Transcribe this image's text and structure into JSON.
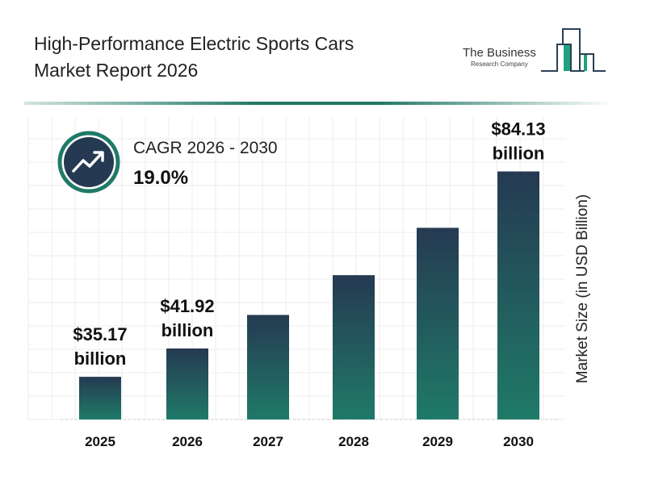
{
  "header": {
    "title_line1": "High-Performance Electric Sports Cars",
    "title_line2": "Market Report 2026"
  },
  "logo": {
    "line1": "The Business",
    "line2": "Research Company"
  },
  "cagr": {
    "label": "CAGR 2026 - 2030",
    "value": "19.0%",
    "icon": "trending-up-icon"
  },
  "colors": {
    "bar_top": "#253a52",
    "bar_bottom": "#1f7a68",
    "accent": "#1f7864"
  },
  "chart_data": {
    "type": "bar",
    "categories": [
      "2025",
      "2026",
      "2027",
      "2028",
      "2029",
      "2030"
    ],
    "values": [
      35.17,
      41.92,
      49.92,
      59.4,
      70.69,
      84.13
    ],
    "data_labels": [
      [
        "$35.17",
        "billion"
      ],
      [
        "$41.92",
        "billion"
      ],
      null,
      null,
      null,
      [
        "$84.13",
        "billion"
      ]
    ],
    "title": "",
    "xlabel": "",
    "ylabel": "Market Size (in USD Billion)",
    "grid": true
  }
}
